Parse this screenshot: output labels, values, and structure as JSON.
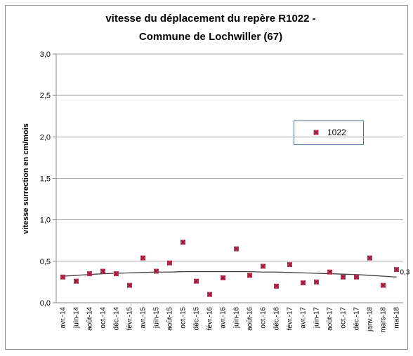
{
  "chart_data": {
    "type": "scatter",
    "title": "vitesse du déplacement du repère R1022 -",
    "subtitle": "Commune de Lochwiller (67)",
    "y_label": "vitesse surrection en cm/mois",
    "categories": [
      "avr.-14",
      "juin-14",
      "août-14",
      "oct.-14",
      "déc.-14",
      "févr.-15",
      "avr.-15",
      "juin-15",
      "août-15",
      "oct.-15",
      "déc.-15",
      "févr.-16",
      "avr.-16",
      "juin-16",
      "août-16",
      "oct.-16",
      "déc.-16",
      "févr.-17",
      "avr.-17",
      "juin-17",
      "août-17",
      "oct.-17",
      "déc.-17",
      "janv.-18",
      "mars-18",
      "mai-18"
    ],
    "series": [
      {
        "name": "1022",
        "color": "#c8385a",
        "values": [
          0.31,
          0.26,
          0.35,
          0.38,
          0.35,
          0.21,
          0.54,
          0.38,
          0.48,
          0.73,
          0.26,
          0.1,
          0.3,
          0.65,
          0.33,
          0.44,
          0.2,
          0.46,
          0.24,
          0.25,
          0.37,
          0.31,
          0.31,
          0.54,
          0.21,
          0.4
        ]
      }
    ],
    "trendline": {
      "color": "#404040",
      "values": [
        0.32,
        0.33,
        0.34,
        0.35,
        0.355,
        0.36,
        0.365,
        0.37,
        0.37,
        0.375,
        0.375,
        0.375,
        0.375,
        0.375,
        0.375,
        0.37,
        0.37,
        0.365,
        0.36,
        0.355,
        0.35,
        0.345,
        0.34,
        0.33,
        0.32,
        0.31
      ]
    },
    "annotation": "0,3",
    "ylim": [
      0,
      3
    ],
    "yticks": [
      {
        "value": 0,
        "label": "0,0"
      },
      {
        "value": 0.5,
        "label": "0,5"
      },
      {
        "value": 1,
        "label": "1,0"
      },
      {
        "value": 1.5,
        "label": "1,5"
      },
      {
        "value": 2,
        "label": "2,0"
      },
      {
        "value": 2.5,
        "label": "2,5"
      },
      {
        "value": 3,
        "label": "3,0"
      }
    ],
    "grid": true
  }
}
